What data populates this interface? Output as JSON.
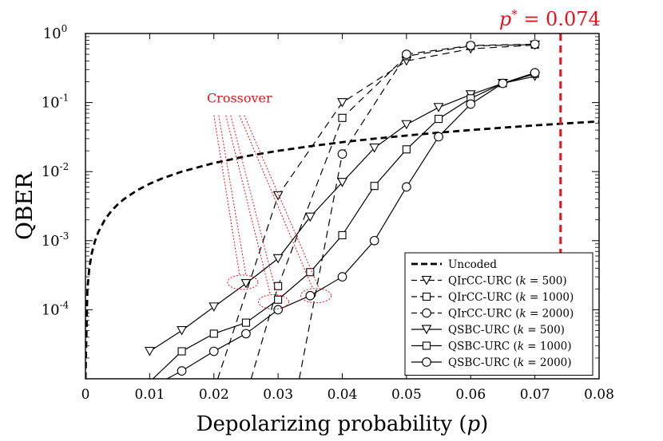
{
  "chart_data": {
    "type": "line",
    "title": "",
    "xlabel": "Depolarizing probability (p)",
    "ylabel": "QBER",
    "xlim": [
      0,
      0.08
    ],
    "ylim_log10": [
      -5,
      0
    ],
    "x_ticks": [
      0,
      0.01,
      0.02,
      0.03,
      0.04,
      0.05,
      0.06,
      0.07,
      0.08
    ],
    "x_tick_labels": [
      "0",
      "0.01",
      "0.02",
      "0.03",
      "0.04",
      "0.05",
      "0.06",
      "0.07",
      "0.08"
    ],
    "y_ticks_log10": [
      0,
      -1,
      -2,
      -3,
      -4
    ],
    "y_tick_labels": [
      "10^0",
      "10^-1",
      "10^-2",
      "10^-3",
      "10^-4"
    ],
    "threshold": {
      "x": 0.074,
      "label": "p* = 0.074",
      "color": "#e8121c"
    },
    "annotation": {
      "text": "Crossover",
      "color": "#e8121c"
    },
    "legend_position": "bottom-right",
    "series": [
      {
        "name": "Uncoded",
        "style": "dashed-thick",
        "marker": "none",
        "x": [
          0.0,
          0.0003,
          0.0006,
          0.001,
          0.0015,
          0.002,
          0.003,
          0.004,
          0.005,
          0.006,
          0.008,
          0.01,
          0.012,
          0.015,
          0.02,
          0.025,
          0.03,
          0.035,
          0.04,
          0.045,
          0.05,
          0.055,
          0.06,
          0.065,
          0.07,
          0.075,
          0.08
        ],
        "y": [
          1e-05,
          0.0002,
          0.0004,
          0.00067,
          0.001,
          0.00133,
          0.002,
          0.00267,
          0.00333,
          0.004,
          0.00533,
          0.00667,
          0.008,
          0.01,
          0.0133,
          0.0167,
          0.02,
          0.0233,
          0.0267,
          0.03,
          0.0333,
          0.0367,
          0.04,
          0.0433,
          0.0467,
          0.05,
          0.0533
        ]
      },
      {
        "name": "QIrCC-URC (k = 500)",
        "legend_prefix": "QIrCC-URC (",
        "legend_k": "k",
        "legend_suffix": " = 500)",
        "style": "dashed",
        "marker": "triangle-down",
        "x": [
          0.0206,
          0.03,
          0.04,
          0.05,
          0.06,
          0.07
        ],
        "y": [
          1e-05,
          0.0045,
          0.1,
          0.4,
          0.6,
          0.68
        ]
      },
      {
        "name": "QIrCC-URC (k = 1000)",
        "legend_prefix": "QIrCC-URC (",
        "legend_k": "k",
        "legend_suffix": " = 1000)",
        "style": "dashed",
        "marker": "square",
        "x": [
          0.0258,
          0.03,
          0.04,
          0.05,
          0.06,
          0.07
        ],
        "y": [
          1e-05,
          0.00022,
          0.06,
          0.47,
          0.66,
          0.69
        ]
      },
      {
        "name": "QIrCC-URC (k = 2000)",
        "legend_prefix": "QIrCC-URC (",
        "legend_k": "k",
        "legend_suffix": " = 2000)",
        "style": "dashed",
        "marker": "circle",
        "x": [
          0.0333,
          0.04,
          0.05,
          0.06,
          0.07
        ],
        "y": [
          1e-05,
          0.018,
          0.5,
          0.67,
          0.7
        ]
      },
      {
        "name": "QSBC-URC (k = 500)",
        "legend_prefix": "QSBC-URC (",
        "legend_k": "k",
        "legend_suffix": " = 500)",
        "style": "solid",
        "marker": "triangle-down",
        "x": [
          0.01,
          0.015,
          0.02,
          0.025,
          0.03,
          0.035,
          0.04,
          0.045,
          0.05,
          0.055,
          0.06,
          0.065,
          0.07
        ],
        "y": [
          2.5e-05,
          5e-05,
          0.00011,
          0.00024,
          0.00055,
          0.0022,
          0.007,
          0.022,
          0.048,
          0.085,
          0.13,
          0.19,
          0.24
        ]
      },
      {
        "name": "QSBC-URC (k = 1000)",
        "legend_prefix": "QSBC-URC (",
        "legend_k": "k",
        "legend_suffix": " = 1000)",
        "style": "solid",
        "marker": "square",
        "x": [
          0.0105,
          0.015,
          0.02,
          0.025,
          0.03,
          0.035,
          0.04,
          0.045,
          0.05,
          0.055,
          0.06,
          0.065,
          0.07
        ],
        "y": [
          1e-05,
          2.5e-05,
          4.5e-05,
          6.5e-05,
          0.00014,
          0.00035,
          0.0012,
          0.0062,
          0.021,
          0.058,
          0.115,
          0.19,
          0.26
        ]
      },
      {
        "name": "QSBC-URC (k = 2000)",
        "legend_prefix": "QSBC-URC (",
        "legend_k": "k",
        "legend_suffix": " = 2000)",
        "style": "solid",
        "marker": "circle",
        "x": [
          0.0127,
          0.015,
          0.02,
          0.025,
          0.03,
          0.035,
          0.04,
          0.045,
          0.05,
          0.055,
          0.06,
          0.065,
          0.07
        ],
        "y": [
          1e-05,
          1.3e-05,
          2.5e-05,
          4.5e-05,
          0.0001,
          0.00016,
          0.0003,
          0.001,
          0.006,
          0.032,
          0.095,
          0.19,
          0.27
        ]
      }
    ],
    "crossover_points": [
      {
        "x": 0.0245,
        "y": 0.00025
      },
      {
        "x": 0.0293,
        "y": 0.00013
      },
      {
        "x": 0.0359,
        "y": 0.00016
      }
    ],
    "crossover_label_anchor": {
      "x": 0.0215,
      "y": 0.085
    }
  }
}
